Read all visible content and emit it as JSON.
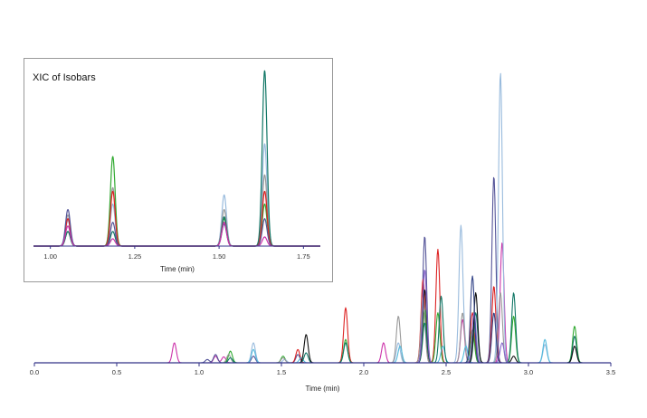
{
  "chart_data": [
    {
      "id": "main",
      "type": "line",
      "title": "",
      "xlabel": "Time (min)",
      "ylabel": "",
      "xlim": [
        0.0,
        3.5
      ],
      "ylim": [
        0,
        1
      ],
      "xticks": [
        0.0,
        0.5,
        1.0,
        1.5,
        2.0,
        2.5,
        3.0,
        3.5
      ],
      "xtick_labels": [
        "0.0",
        "0.5",
        "1.0",
        "1.5",
        "2.0",
        "2.5",
        "3.0",
        "3.5"
      ],
      "grid": false,
      "legend": "none",
      "peak_width": 0.012,
      "series": [
        {
          "color": "#cc33aa",
          "peaks": [
            [
              0.85,
              0.06
            ],
            [
              1.1,
              0.02
            ],
            [
              1.15,
              0.018
            ],
            [
              2.12,
              0.06
            ],
            [
              2.6,
              0.13
            ],
            [
              2.84,
              0.36
            ]
          ]
        },
        {
          "color": "#555599",
          "peaks": [
            [
              1.05,
              0.01
            ],
            [
              1.1,
              0.025
            ],
            [
              1.33,
              0.02
            ],
            [
              1.6,
              0.025
            ],
            [
              2.37,
              0.38
            ],
            [
              2.79,
              0.56
            ]
          ]
        },
        {
          "color": "#dd2222",
          "peaks": [
            [
              1.6,
              0.04
            ],
            [
              1.89,
              0.165
            ],
            [
              2.36,
              0.25
            ],
            [
              2.45,
              0.34
            ],
            [
              2.66,
              0.15
            ],
            [
              2.79,
              0.23
            ]
          ]
        },
        {
          "color": "#33aa33",
          "peaks": [
            [
              1.19,
              0.035
            ],
            [
              1.51,
              0.02
            ],
            [
              1.89,
              0.07
            ],
            [
              2.37,
              0.16
            ],
            [
              2.45,
              0.15
            ],
            [
              2.66,
              0.1
            ],
            [
              2.91,
              0.14
            ],
            [
              3.28,
              0.11
            ]
          ]
        },
        {
          "color": "#99bbdd",
          "peaks": [
            [
              1.33,
              0.06
            ],
            [
              1.52,
              0.01
            ],
            [
              2.21,
              0.06
            ],
            [
              2.59,
              0.41
            ],
            [
              2.62,
              0.04
            ],
            [
              2.83,
              0.87
            ],
            [
              3.1,
              0.055
            ]
          ]
        },
        {
          "color": "#999999",
          "peaks": [
            [
              1.18,
              0.025
            ],
            [
              1.51,
              0.015
            ],
            [
              2.21,
              0.14
            ],
            [
              2.36,
              0.2
            ],
            [
              2.6,
              0.15
            ],
            [
              2.67,
              0.1
            ],
            [
              2.83,
              0.21
            ]
          ]
        },
        {
          "color": "#55bbdd",
          "peaks": [
            [
              1.33,
              0.04
            ],
            [
              1.62,
              0.015
            ],
            [
              2.22,
              0.05
            ],
            [
              2.48,
              0.05
            ],
            [
              2.62,
              0.05
            ],
            [
              3.1,
              0.07
            ]
          ]
        },
        {
          "color": "#117766",
          "peaks": [
            [
              1.19,
              0.015
            ],
            [
              1.65,
              0.03
            ],
            [
              1.89,
              0.06
            ],
            [
              2.37,
              0.12
            ],
            [
              2.47,
              0.2
            ],
            [
              2.68,
              0.15
            ],
            [
              2.91,
              0.21
            ],
            [
              3.28,
              0.08
            ]
          ]
        },
        {
          "color": "#111111",
          "peaks": [
            [
              1.65,
              0.085
            ],
            [
              2.37,
              0.22
            ],
            [
              2.68,
              0.21
            ],
            [
              2.91,
              0.02
            ],
            [
              3.28,
              0.05
            ]
          ]
        },
        {
          "color": "#8866cc",
          "peaks": [
            [
              2.37,
              0.28
            ],
            [
              2.67,
              0.15
            ],
            [
              2.84,
              0.06
            ]
          ]
        },
        {
          "color": "#334488",
          "peaks": [
            [
              2.66,
              0.26
            ],
            [
              2.79,
              0.15
            ]
          ]
        }
      ]
    },
    {
      "id": "inset",
      "type": "line",
      "title": "XIC of Isobars",
      "xlabel": "Time (min)",
      "ylabel": "",
      "xlim": [
        0.95,
        1.8
      ],
      "ylim": [
        0,
        1
      ],
      "xticks": [
        1.0,
        1.25,
        1.5,
        1.75
      ],
      "xtick_labels": [
        "1.00",
        "1.25",
        "1.50",
        "1.75"
      ],
      "grid": false,
      "legend": "none",
      "peak_width": 0.007,
      "series": [
        {
          "color": "#99bbdd",
          "peaks": [
            [
              1.052,
              0.14
            ],
            [
              1.185,
              0.23
            ],
            [
              1.515,
              0.28
            ],
            [
              1.635,
              0.56
            ]
          ]
        },
        {
          "color": "#999999",
          "peaks": [
            [
              1.052,
              0.17
            ],
            [
              1.185,
              0.32
            ],
            [
              1.515,
              0.2
            ],
            [
              1.635,
              0.39
            ]
          ]
        },
        {
          "color": "#33aa33",
          "peaks": [
            [
              1.052,
              0.08
            ],
            [
              1.185,
              0.49
            ],
            [
              1.515,
              0.15
            ],
            [
              1.635,
              0.23
            ]
          ]
        },
        {
          "color": "#117766",
          "peaks": [
            [
              1.052,
              0.08
            ],
            [
              1.185,
              0.08
            ],
            [
              1.515,
              0.16
            ],
            [
              1.635,
              0.96
            ]
          ]
        },
        {
          "color": "#dd2222",
          "peaks": [
            [
              1.052,
              0.15
            ],
            [
              1.185,
              0.3
            ],
            [
              1.515,
              0.13
            ],
            [
              1.635,
              0.3
            ]
          ]
        },
        {
          "color": "#555599",
          "peaks": [
            [
              1.052,
              0.2
            ],
            [
              1.185,
              0.13
            ],
            [
              1.515,
              0.12
            ],
            [
              1.635,
              0.15
            ]
          ]
        },
        {
          "color": "#cc33aa",
          "peaks": [
            [
              1.052,
              0.11
            ],
            [
              1.185,
              0.04
            ],
            [
              1.515,
              0.13
            ],
            [
              1.635,
              0.05
            ]
          ]
        }
      ]
    }
  ]
}
